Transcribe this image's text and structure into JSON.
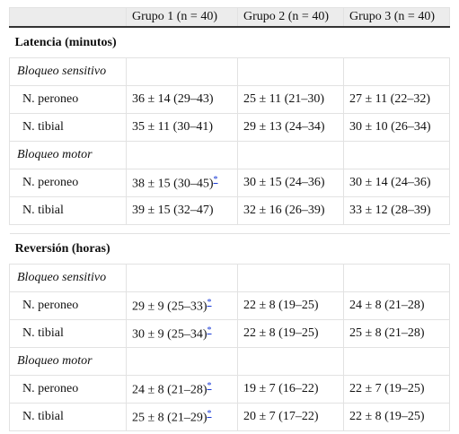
{
  "table": {
    "columns": [
      "Grupo 1 (n = 40)",
      "Grupo 2 (n = 40)",
      "Grupo 3 (n = 40)"
    ],
    "sections": [
      {
        "title": "Latencia (minutos)",
        "groups": [
          {
            "title": "Bloqueo sensitivo",
            "rows": [
              {
                "label": "N. peroneo",
                "cells": [
                  {
                    "text": "36 ± 14 (29–43)"
                  },
                  {
                    "text": "25 ± 11 (21–30)"
                  },
                  {
                    "text": "27 ± 11 (22–32)"
                  }
                ]
              },
              {
                "label": "N. tibial",
                "cells": [
                  {
                    "text": "35 ± 11 (30–41)"
                  },
                  {
                    "text": "29 ± 13 (24–34)"
                  },
                  {
                    "text": "30 ± 10 (26–34)"
                  }
                ]
              }
            ]
          },
          {
            "title": "Bloqueo motor",
            "rows": [
              {
                "label": "N. peroneo",
                "cells": [
                  {
                    "text": "38 ± 15 (30–45)",
                    "note": "*"
                  },
                  {
                    "text": "30 ± 15 (24–36)"
                  },
                  {
                    "text": "30 ± 14 (24–36)"
                  }
                ]
              },
              {
                "label": "N. tibial",
                "cells": [
                  {
                    "text": "39 ± 15 (32–47)"
                  },
                  {
                    "text": "32 ± 16 (26–39)"
                  },
                  {
                    "text": "33 ± 12 (28–39)"
                  }
                ]
              }
            ]
          }
        ]
      },
      {
        "title": "Reversión (horas)",
        "groups": [
          {
            "title": "Bloqueo sensitivo",
            "rows": [
              {
                "label": "N. peroneo",
                "cells": [
                  {
                    "text": "29 ± 9 (25–33)",
                    "note": "*"
                  },
                  {
                    "text": "22 ± 8 (19–25)"
                  },
                  {
                    "text": "24 ± 8 (21–28)"
                  }
                ]
              },
              {
                "label": "N. tibial",
                "cells": [
                  {
                    "text": "30 ± 9 (25–34)",
                    "note": "*"
                  },
                  {
                    "text": "22 ± 8 (19–25)"
                  },
                  {
                    "text": "25 ± 8 (21–28)"
                  }
                ]
              }
            ]
          },
          {
            "title": "Bloqueo motor",
            "rows": [
              {
                "label": "N. peroneo",
                "cells": [
                  {
                    "text": "24 ± 8 (21–28)",
                    "note": "*"
                  },
                  {
                    "text": "19 ± 7 (16–22)"
                  },
                  {
                    "text": "22 ± 7 (19–25)"
                  }
                ]
              },
              {
                "label": "N. tibial",
                "cells": [
                  {
                    "text": "25 ± 8 (21–29)",
                    "note": "*"
                  },
                  {
                    "text": "20 ± 7 (17–22)"
                  },
                  {
                    "text": "22 ± 8 (19–25)"
                  }
                ]
              }
            ]
          }
        ]
      }
    ]
  }
}
